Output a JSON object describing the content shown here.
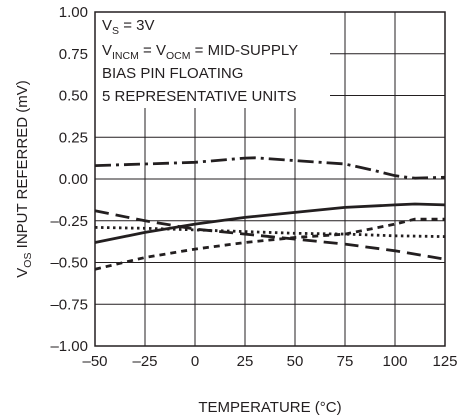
{
  "chart_data": {
    "type": "line",
    "xlabel": "TEMPERATURE (°C)",
    "ylabel": {
      "v": "V",
      "sub": "OS",
      "rest": " INPUT REFERRED (mV)"
    },
    "xlim": [
      -50,
      125
    ],
    "ylim": [
      -1.0,
      1.0
    ],
    "x_ticks": [
      -50,
      -25,
      0,
      25,
      50,
      75,
      100,
      125
    ],
    "x_tick_labels": [
      "–50",
      "–25",
      "0",
      "25",
      "50",
      "75",
      "100",
      "125"
    ],
    "y_ticks": [
      1.0,
      0.75,
      0.5,
      0.25,
      0.0,
      -0.25,
      -0.5,
      -0.75,
      -1.0
    ],
    "y_tick_labels": [
      "1.00",
      "0.75",
      "0.50",
      "0.25",
      "0.00",
      "–0.25",
      "–0.50",
      "–0.75",
      "–1.00"
    ],
    "grid": true,
    "annotations": {
      "line1": {
        "a": "V",
        "a_sub": "S",
        "b": " = 3V"
      },
      "line2": {
        "a": "V",
        "a_sub": "INCM",
        "b": " = V",
        "b_sub": "OCM",
        "c": " = MID-SUPPLY"
      },
      "line3": "BIAS PIN FLOATING",
      "line4": "5 REPRESENTATIVE UNITS"
    },
    "series": [
      {
        "style": "dash-dot",
        "x": [
          -50,
          -25,
          0,
          25,
          30,
          50,
          75,
          90,
          100,
          110,
          125
        ],
        "y": [
          0.08,
          0.09,
          0.1,
          0.125,
          0.127,
          0.11,
          0.09,
          0.05,
          0.02,
          0.005,
          0.01
        ]
      },
      {
        "style": "solid",
        "x": [
          -50,
          -25,
          0,
          25,
          50,
          75,
          100,
          110,
          125
        ],
        "y": [
          -0.38,
          -0.32,
          -0.27,
          -0.23,
          -0.2,
          -0.17,
          -0.155,
          -0.15,
          -0.155
        ]
      },
      {
        "style": "long-dash",
        "x": [
          -50,
          -25,
          0,
          25,
          50,
          75,
          100,
          125
        ],
        "y": [
          -0.19,
          -0.25,
          -0.3,
          -0.33,
          -0.36,
          -0.39,
          -0.43,
          -0.48
        ]
      },
      {
        "style": "dotted",
        "x": [
          -50,
          -25,
          0,
          25,
          50,
          75,
          100,
          125
        ],
        "y": [
          -0.29,
          -0.295,
          -0.305,
          -0.315,
          -0.325,
          -0.33,
          -0.34,
          -0.345
        ]
      },
      {
        "style": "short-dash",
        "x": [
          -50,
          -25,
          0,
          25,
          50,
          75,
          100,
          110,
          125
        ],
        "y": [
          -0.54,
          -0.47,
          -0.42,
          -0.38,
          -0.35,
          -0.33,
          -0.27,
          -0.24,
          -0.24
        ]
      }
    ]
  }
}
